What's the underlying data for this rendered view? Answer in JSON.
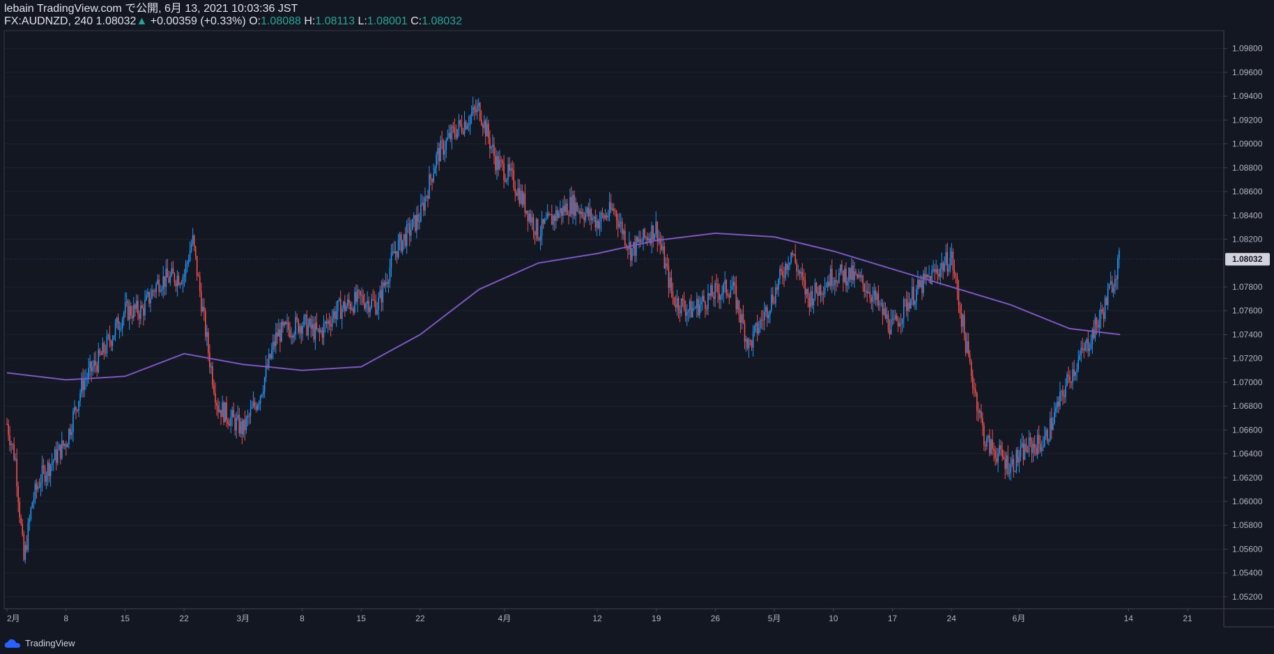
{
  "header": {
    "published": "lebain TradingView.com で公開, 6月 13, 2021 10:03:36 JST",
    "symbol": "FX:AUDNZD, 240",
    "last": "1.08032",
    "change": "+0.00359 (+0.33%)",
    "o_label": "O:",
    "o_value": "1.08088",
    "h_label": "H:",
    "h_value": "1.08113",
    "l_label": "L:",
    "l_value": "1.08001",
    "c_label": "C:",
    "c_value": "1.08032"
  },
  "colors": {
    "background": "#131722",
    "up": "#2196f3",
    "down": "#ef5350",
    "ma": "#7e57c2",
    "accent": "#26a69a"
  },
  "footer": {
    "brand": "TradingView",
    "icon": "tradingview-cloud-icon"
  },
  "chart_data": {
    "type": "line",
    "ylim": [
      1.051,
      1.0995
    ],
    "y_ticks": [
      "1.09800",
      "1.09600",
      "1.09400",
      "1.09200",
      "1.09000",
      "1.08800",
      "1.08600",
      "1.08400",
      "1.08200",
      "1.08032",
      "1.07800",
      "1.07600",
      "1.07400",
      "1.07200",
      "1.07000",
      "1.06800",
      "1.06600",
      "1.06400",
      "1.06200",
      "1.06000",
      "1.05800",
      "1.05600",
      "1.05400",
      "1.05200"
    ],
    "current_price": "1.08032",
    "x_ticks": [
      "2月",
      "8",
      "15",
      "22",
      "3月",
      "8",
      "15",
      "22",
      "4月",
      "12",
      "19",
      "26",
      "5月",
      "10",
      "17",
      "24",
      "6月",
      "14",
      "21"
    ],
    "series": [
      {
        "kind": "price",
        "x": [
          "2021-02-01",
          "2021-02-02",
          "2021-02-03",
          "2021-02-04",
          "2021-02-05",
          "2021-02-08",
          "2021-02-10",
          "2021-02-12",
          "2021-02-15",
          "2021-02-17",
          "2021-02-19",
          "2021-02-22",
          "2021-02-23",
          "2021-02-25",
          "2021-02-26",
          "2021-03-01",
          "2021-03-03",
          "2021-03-05",
          "2021-03-08",
          "2021-03-10",
          "2021-03-12",
          "2021-03-15",
          "2021-03-17",
          "2021-03-19",
          "2021-03-22",
          "2021-03-24",
          "2021-03-26",
          "2021-03-29",
          "2021-03-31",
          "2021-04-02",
          "2021-04-05",
          "2021-04-07",
          "2021-04-09",
          "2021-04-12",
          "2021-04-14",
          "2021-04-16",
          "2021-04-19",
          "2021-04-21",
          "2021-04-23",
          "2021-04-26",
          "2021-04-28",
          "2021-04-30",
          "2021-05-03",
          "2021-05-05",
          "2021-05-07",
          "2021-05-10",
          "2021-05-12",
          "2021-05-14",
          "2021-05-17",
          "2021-05-19",
          "2021-05-21",
          "2021-05-24",
          "2021-05-26",
          "2021-05-28",
          "2021-05-31",
          "2021-06-02",
          "2021-06-04",
          "2021-06-07",
          "2021-06-09",
          "2021-06-11",
          "2021-06-13"
        ],
        "y": [
          1.0665,
          1.0635,
          1.055,
          1.06,
          1.062,
          1.065,
          1.07,
          1.072,
          1.076,
          1.076,
          1.0785,
          1.079,
          1.082,
          1.072,
          1.068,
          1.066,
          1.069,
          1.074,
          1.075,
          1.074,
          1.076,
          1.077,
          1.0765,
          1.081,
          1.084,
          1.089,
          1.091,
          1.093,
          1.0885,
          1.087,
          1.0825,
          1.084,
          1.085,
          1.0835,
          1.0845,
          1.081,
          1.083,
          1.077,
          1.076,
          1.0775,
          1.078,
          1.073,
          1.0775,
          1.081,
          1.077,
          1.079,
          1.079,
          1.078,
          1.0745,
          1.077,
          1.0785,
          1.0805,
          1.072,
          1.065,
          1.063,
          1.0645,
          1.065,
          1.0705,
          1.073,
          1.076,
          1.0805
        ]
      },
      {
        "kind": "moving-average",
        "x": [
          "2021-02-01",
          "2021-02-08",
          "2021-02-15",
          "2021-02-22",
          "2021-03-01",
          "2021-03-08",
          "2021-03-15",
          "2021-03-22",
          "2021-03-29",
          "2021-04-05",
          "2021-04-12",
          "2021-04-19",
          "2021-04-26",
          "2021-05-03",
          "2021-05-10",
          "2021-05-17",
          "2021-05-24",
          "2021-05-31",
          "2021-06-07",
          "2021-06-13"
        ],
        "y": [
          1.0708,
          1.0702,
          1.0705,
          1.0724,
          1.0715,
          1.071,
          1.0713,
          1.074,
          1.0778,
          1.08,
          1.0808,
          1.0819,
          1.0825,
          1.0822,
          1.081,
          1.0795,
          1.078,
          1.0765,
          1.0745,
          1.074
        ]
      }
    ]
  }
}
